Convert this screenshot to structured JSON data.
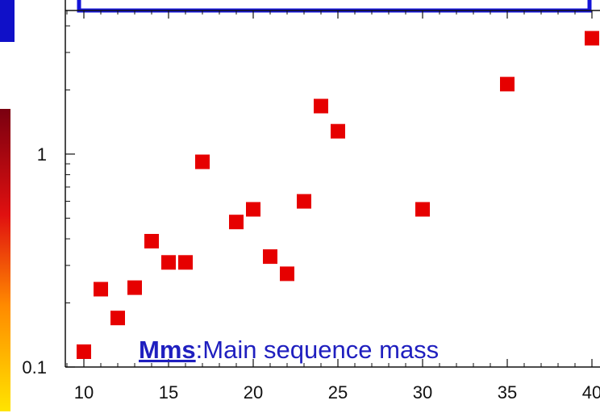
{
  "chart_data": {
    "type": "scatter",
    "title": "",
    "xlabel": "",
    "ylabel": "",
    "x_scale": "linear",
    "y_scale": "log",
    "xlim": [
      9,
      40
    ],
    "ylim": [
      0.1,
      4
    ],
    "x_ticks": [
      "10",
      "15",
      "20",
      "25",
      "30",
      "35",
      "40"
    ],
    "y_ticks": [
      "0.1",
      "1"
    ],
    "grid": false,
    "legend": "none",
    "marker_color": "#e60000",
    "points": [
      {
        "x": 10,
        "y": 0.118
      },
      {
        "x": 11,
        "y": 0.232
      },
      {
        "x": 12,
        "y": 0.17
      },
      {
        "x": 13,
        "y": 0.236
      },
      {
        "x": 14,
        "y": 0.39
      },
      {
        "x": 15,
        "y": 0.31
      },
      {
        "x": 16,
        "y": 0.31
      },
      {
        "x": 17,
        "y": 0.92
      },
      {
        "x": 19,
        "y": 0.48
      },
      {
        "x": 20,
        "y": 0.55
      },
      {
        "x": 21,
        "y": 0.33
      },
      {
        "x": 22,
        "y": 0.274
      },
      {
        "x": 23,
        "y": 0.6
      },
      {
        "x": 24,
        "y": 1.68
      },
      {
        "x": 25,
        "y": 1.28
      },
      {
        "x": 30,
        "y": 0.55
      },
      {
        "x": 35,
        "y": 2.13
      },
      {
        "x": 40,
        "y": 3.5
      }
    ],
    "annotation": {
      "strong": "Mms",
      "rest": ":Main sequence mass"
    }
  }
}
